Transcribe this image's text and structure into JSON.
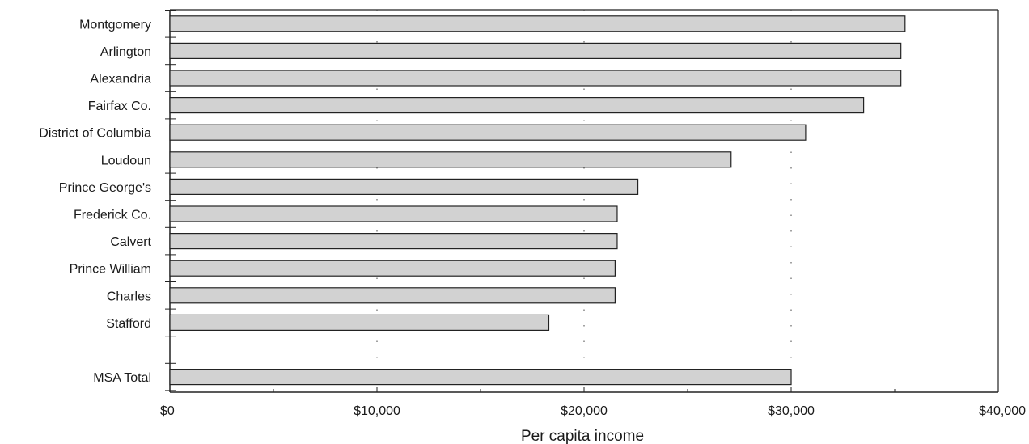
{
  "chart_data": {
    "type": "bar",
    "orientation": "horizontal",
    "xlabel": "Per capita income",
    "ylabel": "",
    "xlim": [
      0,
      40000
    ],
    "x_ticks": [
      {
        "value": 0,
        "label": "$0"
      },
      {
        "value": 10000,
        "label": "$10,000"
      },
      {
        "value": 20000,
        "label": "$20,000"
      },
      {
        "value": 30000,
        "label": "$30,000"
      },
      {
        "value": 40000,
        "label": "$40,000"
      }
    ],
    "grid": "dotted vertical lines at $10,000, $20,000 and $30,000",
    "bar_color": "#d2d2d2",
    "categories": [
      "Montgomery",
      "Arlington",
      "Alexandria",
      "Fairfax Co.",
      "District of Columbia",
      "Loudoun",
      "Prince George's",
      "Frederick Co.",
      "Calvert",
      "Prince William",
      "Charles",
      "Stafford",
      "",
      "MSA Total"
    ],
    "values": [
      35500,
      35300,
      35300,
      33500,
      30700,
      27100,
      22600,
      21600,
      21600,
      21500,
      21500,
      18300,
      null,
      30000
    ]
  }
}
